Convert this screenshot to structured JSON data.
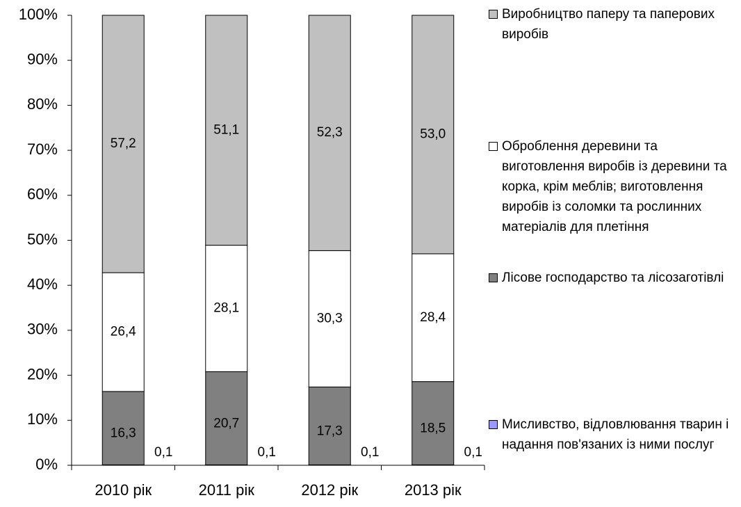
{
  "chart_data": {
    "type": "stacked_bar",
    "categories": [
      "2010 рік",
      "2011 рік",
      "2012 рік",
      "2013 рік"
    ],
    "series": [
      {
        "name": "Мисливство, відловлювання тварин і надання пов'язаних із ними послуг",
        "color": "#9999ff",
        "values": [
          0.1,
          0.1,
          0.1,
          0.1
        ],
        "value_labels": [
          "0,1",
          "0,1",
          "0,1",
          "0,1"
        ]
      },
      {
        "name": "Лісове господарство та лісозаготівлі",
        "color": "#808080",
        "values": [
          16.3,
          20.7,
          17.3,
          18.5
        ],
        "value_labels": [
          "16,3",
          "20,7",
          "17,3",
          "18,5"
        ]
      },
      {
        "name": "Оброблення деревини та виготовлення виробів із деревини та корка, крім меблів; виготовлення виробів із соломки та рослинних матеріалів для плетіння",
        "color": "#ffffff",
        "values": [
          26.4,
          28.1,
          30.3,
          28.4
        ],
        "value_labels": [
          "26,4",
          "28,1",
          "30,3",
          "28,4"
        ]
      },
      {
        "name": "Виробництво паперу та паперових виробів",
        "color": "#c0c0c0",
        "values": [
          57.2,
          51.1,
          52.3,
          53.0
        ],
        "value_labels": [
          "57,2",
          "51,1",
          "52,3",
          "53,0"
        ]
      }
    ],
    "ylim": [
      0,
      100
    ],
    "yticks": [
      {
        "value": 0,
        "label": "0%"
      },
      {
        "value": 10,
        "label": "10%"
      },
      {
        "value": 20,
        "label": "20%"
      },
      {
        "value": 30,
        "label": "30%"
      },
      {
        "value": 40,
        "label": "40%"
      },
      {
        "value": 50,
        "label": "50%"
      },
      {
        "value": 60,
        "label": "60%"
      },
      {
        "value": 70,
        "label": "70%"
      },
      {
        "value": 80,
        "label": "80%"
      },
      {
        "value": 90,
        "label": "90%"
      },
      {
        "value": 100,
        "label": "100%"
      }
    ],
    "legend": "right"
  }
}
